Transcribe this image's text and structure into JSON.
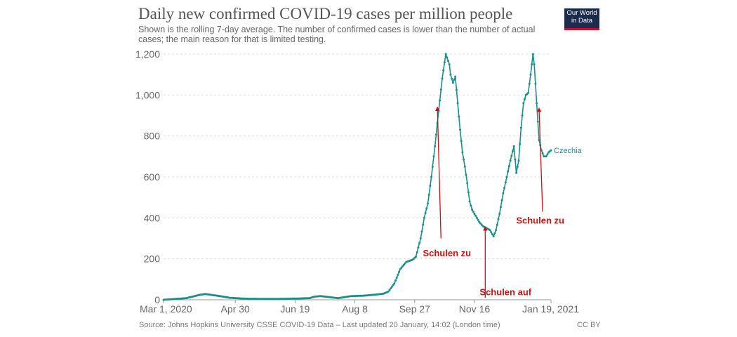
{
  "header": {
    "title": "Daily new confirmed COVID-19 cases per million people",
    "subtitle": "Shown is the rolling 7-day average. The number of confirmed cases is lower than the number of actual cases; the main reason for that is limited testing.",
    "logo_line1": "Our World",
    "logo_line2": "in Data"
  },
  "footer": {
    "source": "Source: Johns Hopkins University CSSE COVID-19 Data – Last updated 20 January, 14:02 (London time)",
    "license": "CC BY"
  },
  "colors": {
    "series": "#1a8f8a",
    "annotation": "#cc1111",
    "grid": "#dddddd",
    "logo_bg": "#1a2b4c",
    "logo_accent": "#c8102e"
  },
  "chart_data": {
    "type": "line",
    "x_start_date": "2020-03-01",
    "x_end_date": "2021-01-19",
    "xlim": [
      "2020-03-01",
      "2021-01-19"
    ],
    "ylim": [
      0,
      1200
    ],
    "grid": true,
    "x_ticks": [
      "Mar 1, 2020",
      "Apr 30",
      "Jun 19",
      "Aug 8",
      "Sep 27",
      "Nov 16",
      "Jan 19, 2021"
    ],
    "x_tick_dates": [
      "2020-03-01",
      "2020-04-30",
      "2020-06-19",
      "2020-08-08",
      "2020-09-27",
      "2020-11-16",
      "2021-01-19"
    ],
    "y_ticks": [
      0,
      200,
      400,
      600,
      800,
      1000,
      1200
    ],
    "y_tick_labels": [
      "0",
      "200",
      "400",
      "600",
      "800",
      "1,000",
      "1,200"
    ],
    "series": [
      {
        "name": "Czechia",
        "x": [
          "2020-03-01",
          "2020-03-20",
          "2020-04-01",
          "2020-04-05",
          "2020-04-15",
          "2020-04-25",
          "2020-05-10",
          "2020-06-01",
          "2020-06-20",
          "2020-07-01",
          "2020-07-05",
          "2020-07-10",
          "2020-07-25",
          "2020-08-05",
          "2020-08-15",
          "2020-08-25",
          "2020-09-01",
          "2020-09-05",
          "2020-09-10",
          "2020-09-15",
          "2020-09-20",
          "2020-09-25",
          "2020-09-28",
          "2020-10-02",
          "2020-10-05",
          "2020-10-08",
          "2020-10-11",
          "2020-10-14",
          "2020-10-17",
          "2020-10-20",
          "2020-10-23",
          "2020-10-26",
          "2020-10-27",
          "2020-10-29",
          "2020-10-31",
          "2020-11-02",
          "2020-11-04",
          "2020-11-06",
          "2020-11-08",
          "2020-11-10",
          "2020-11-12",
          "2020-11-14",
          "2020-11-17",
          "2020-11-20",
          "2020-11-23",
          "2020-11-26",
          "2020-11-29",
          "2020-12-02",
          "2020-12-04",
          "2020-12-07",
          "2020-12-10",
          "2020-12-13",
          "2020-12-16",
          "2020-12-19",
          "2020-12-21",
          "2020-12-23",
          "2020-12-25",
          "2020-12-27",
          "2020-12-29",
          "2020-12-31",
          "2021-01-02",
          "2021-01-04",
          "2021-01-05",
          "2021-01-07",
          "2021-01-09",
          "2021-01-11",
          "2021-01-13",
          "2021-01-15",
          "2021-01-17",
          "2021-01-19"
        ],
        "y": [
          0,
          8,
          25,
          28,
          20,
          10,
          5,
          4,
          6,
          8,
          15,
          18,
          8,
          18,
          20,
          25,
          30,
          40,
          80,
          150,
          185,
          195,
          210,
          300,
          400,
          470,
          600,
          750,
          920,
          1080,
          1200,
          1150,
          1100,
          1060,
          1090,
          960,
          830,
          720,
          650,
          570,
          480,
          440,
          410,
          380,
          360,
          350,
          340,
          310,
          340,
          420,
          520,
          600,
          680,
          750,
          620,
          680,
          840,
          960,
          1000,
          1010,
          1100,
          1200,
          1150,
          960,
          780,
          730,
          700,
          700,
          720,
          730
        ]
      }
    ],
    "annotations": [
      {
        "label": "Schulen zu",
        "arrow_from": [
          "2020-10-19",
          300
        ],
        "arrow_to": [
          "2020-10-16",
          940
        ],
        "label_at": [
          "2020-10-24",
          230
        ]
      },
      {
        "label": "Schulen auf",
        "arrow_from": [
          "2020-11-25",
          10
        ],
        "arrow_to": [
          "2020-11-25",
          355
        ],
        "label_at": [
          "2020-12-12",
          40
        ]
      },
      {
        "label": "Schulen zu",
        "arrow_from": [
          "2021-01-12",
          430
        ],
        "arrow_to": [
          "2021-01-09",
          935
        ],
        "label_at": [
          "2021-01-10",
          390
        ]
      }
    ]
  }
}
